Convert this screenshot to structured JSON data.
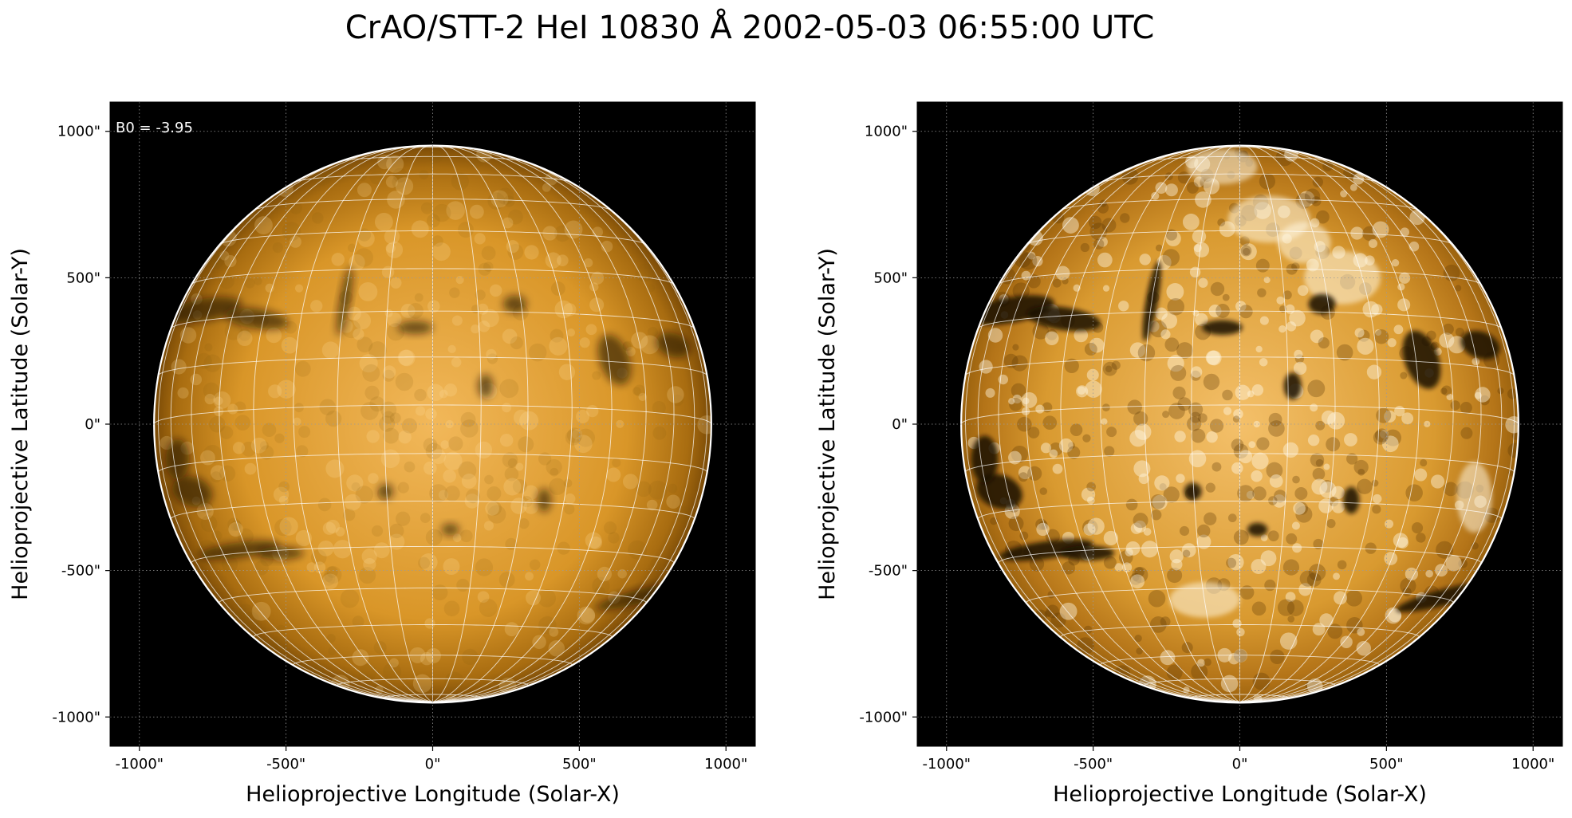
{
  "figure": {
    "title": "CrAO/STT-2 HeI 10830 Å 2002-05-03 06:55:00 UTC"
  },
  "colors": {
    "background": "#000000",
    "disk_center": "#f2b85a",
    "disk_limb": "#7a4a06",
    "grid": "#ffffff",
    "feature_dark": "#1a0e02",
    "feature_bright": "#fff6e0"
  },
  "panels": [
    {
      "id": "left",
      "xlabel": "Helioprojective Longitude (Solar-X)",
      "ylabel": "Helioprojective Latitude (Solar-Y)",
      "annotation": "B0 = -3.95",
      "style": "normal"
    },
    {
      "id": "right",
      "xlabel": "Helioprojective Longitude (Solar-X)",
      "ylabel": "Helioprojective Latitude (Solar-Y)",
      "annotation": "",
      "style": "enhanced"
    }
  ],
  "axes": {
    "xlim": [
      -1100,
      1100
    ],
    "ylim": [
      -1100,
      1100
    ],
    "xticks": [
      -1000,
      -500,
      0,
      500,
      1000
    ],
    "yticks": [
      -1000,
      -500,
      0,
      500,
      1000
    ],
    "xtick_labels": [
      "-1000\"",
      "-500\"",
      "0\"",
      "500\"",
      "1000\""
    ],
    "ytick_labels": [
      "-1000\"",
      "-500\"",
      "0\"",
      "500\"",
      "1000\""
    ],
    "grid": true,
    "grid_style": "dotted"
  },
  "solar_disk": {
    "radius_arcsec": 950,
    "b0_deg": -3.95,
    "lon_grid_step_deg": 10,
    "lat_grid_step_deg": 10
  }
}
